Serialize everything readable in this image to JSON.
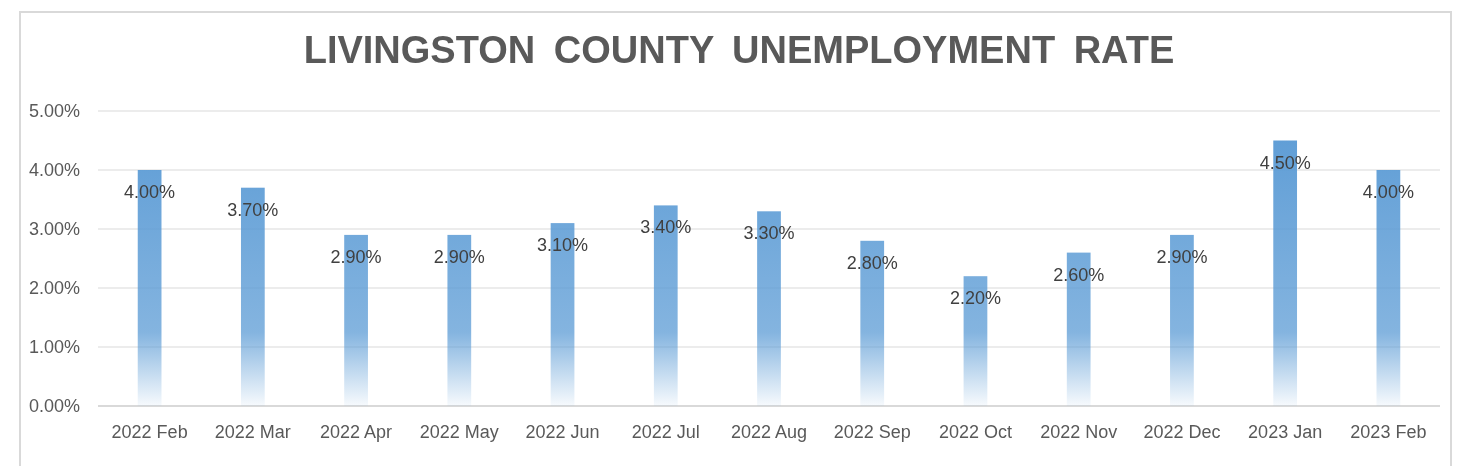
{
  "chart_data": {
    "type": "bar",
    "title": "LIVINGSTON COUNTY UNEMPLOYMENT RATE",
    "categories": [
      "2022 Feb",
      "2022 Mar",
      "2022 Apr",
      "2022 May",
      "2022 Jun",
      "2022 Jul",
      "2022 Aug",
      "2022 Sep",
      "2022 Oct",
      "2022 Nov",
      "2022 Dec",
      "2023 Jan",
      "2023 Feb"
    ],
    "values": [
      4.0,
      3.7,
      2.9,
      2.9,
      3.1,
      3.4,
      3.3,
      2.8,
      2.2,
      2.6,
      2.9,
      4.5,
      4.0
    ],
    "value_labels": [
      "4.00%",
      "3.70%",
      "2.90%",
      "2.90%",
      "3.10%",
      "3.40%",
      "3.30%",
      "2.80%",
      "2.20%",
      "2.60%",
      "2.90%",
      "4.50%",
      "4.00%"
    ],
    "color": "#5b9bd5",
    "ylim": [
      0,
      5
    ],
    "yticks": [
      {
        "value": 0,
        "label": "0.00%"
      },
      {
        "value": 1,
        "label": "1.00%"
      },
      {
        "value": 2,
        "label": "2.00%"
      },
      {
        "value": 3,
        "label": "3.00%"
      },
      {
        "value": 4,
        "label": "4.00%"
      },
      {
        "value": 5,
        "label": "5.00%"
      }
    ],
    "grid": "y"
  }
}
